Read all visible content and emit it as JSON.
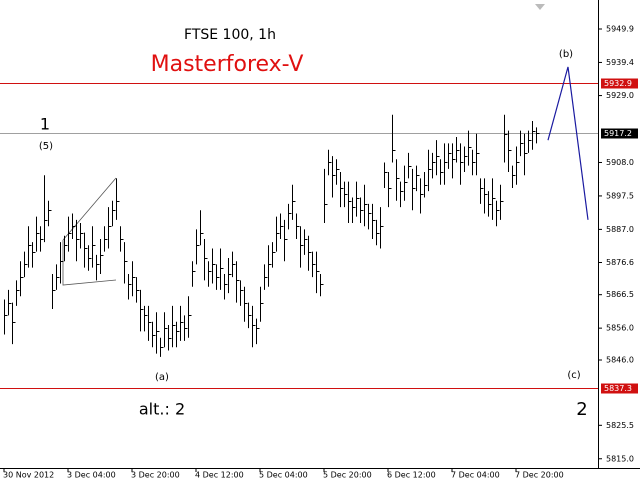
{
  "chart_data": {
    "type": "ohlc",
    "title": "FTSE 100, 1h",
    "subtitle": "Masterforex-V",
    "ylim": [
      5812.1,
      5959.0
    ],
    "xlim": [
      -1,
      148.5
    ],
    "yticks": [
      5949.9,
      5939.4,
      {
        "value": 5929,
        "label": "5929.0"
      },
      {
        "value": 5908,
        "label": "5908.0"
      },
      5897.5,
      {
        "value": 5887,
        "label": "5887.0"
      },
      5876.6,
      5866.5,
      {
        "value": 5856,
        "label": "5856.0"
      },
      {
        "value": 5846,
        "label": "5846.0"
      },
      5825.5,
      {
        "value": 5815,
        "label": "5815.0"
      }
    ],
    "xticks": [
      {
        "value": 0,
        "label": "30 Nov 2012"
      },
      {
        "value": 16,
        "label": "3 Dec 04:00"
      },
      {
        "value": 32,
        "label": "3 Dec 20:00"
      },
      {
        "value": 48,
        "label": "4 Dec 12:00"
      },
      {
        "value": 64,
        "label": "5 Dec 04:00"
      },
      {
        "value": 80,
        "label": "5 Dec 20:00"
      },
      {
        "value": 96,
        "label": "6 Dec 12:00"
      },
      {
        "value": 112,
        "label": "7 Dec 04:00"
      },
      {
        "value": 128,
        "label": "7 Dec 20:00"
      }
    ],
    "color": "#000000",
    "high": [
      5865,
      5868,
      5864,
      5871,
      5877,
      5880,
      5888,
      5883,
      5891,
      5888,
      5904,
      5896,
      5873,
      5876,
      5883,
      5885,
      5891,
      5892,
      5890,
      5889,
      5886,
      5882,
      5888,
      5879,
      5884,
      5888,
      5894,
      5896,
      5903,
      5888,
      5883,
      5873,
      5877,
      5872,
      5868,
      5863,
      5863,
      5858,
      5861,
      5853,
      5861,
      5857,
      5863,
      5858,
      5863,
      5860,
      5866,
      5877,
      5887,
      5893,
      5884,
      5877,
      5881,
      5876,
      5881,
      5873,
      5878,
      5880,
      5877,
      5871,
      5869,
      5864,
      5863,
      5859,
      5869,
      5876,
      5882,
      5883,
      5891,
      5892,
      5890,
      5895,
      5901,
      5892,
      5888,
      5887,
      5885,
      5880,
      5880,
      5873,
      5906,
      5912,
      5910,
      5909,
      5905,
      5902,
      5902,
      5897,
      5902,
      5897,
      5901,
      5895,
      5895,
      5890,
      5894,
      5908,
      5905,
      5923,
      5909,
      5902,
      5907,
      5911,
      5906,
      5907,
      5903,
      5905,
      5912,
      5911,
      5915,
      5909,
      5914,
      5914,
      5914,
      5916,
      5914,
      5913,
      5918,
      5912,
      5917,
      5903,
      5903,
      5899,
      5903,
      5896,
      5901,
      5923,
      5918,
      5907,
      5913,
      5918,
      5917,
      5918,
      5921,
      5919
    ],
    "low": [
      5854,
      5860,
      5851,
      5863,
      5866,
      5872,
      5875,
      5875,
      5880,
      5880,
      5883,
      5888,
      5862,
      5868,
      5870,
      5877,
      5880,
      5884,
      5877,
      5881,
      5875,
      5874,
      5875,
      5871,
      5873,
      5880,
      5881,
      5888,
      5890,
      5880,
      5870,
      5865,
      5866,
      5864,
      5855,
      5855,
      5852,
      5850,
      5848,
      5847,
      5850,
      5849,
      5850,
      5850,
      5852,
      5852,
      5853,
      5869,
      5876,
      5882,
      5871,
      5869,
      5870,
      5868,
      5868,
      5865,
      5867,
      5872,
      5864,
      5863,
      5858,
      5856,
      5850,
      5851,
      5858,
      5868,
      5869,
      5875,
      5880,
      5884,
      5877,
      5887,
      5890,
      5884,
      5875,
      5879,
      5874,
      5872,
      5867,
      5866,
      5889,
      5904,
      5897,
      5901,
      5894,
      5894,
      5889,
      5889,
      5891,
      5889,
      5888,
      5887,
      5884,
      5882,
      5881,
      5900,
      5894,
      5908,
      5896,
      5894,
      5896,
      5903,
      5893,
      5899,
      5892,
      5897,
      5899,
      5903,
      5904,
      5901,
      5901,
      5906,
      5903,
      5908,
      5901,
      5905,
      5907,
      5904,
      5904,
      5895,
      5892,
      5891,
      5890,
      5888,
      5890,
      5908,
      5905,
      5900,
      5901,
      5910,
      5904,
      5911,
      5912,
      5914
    ],
    "close": [
      5860,
      5864,
      5858,
      5868,
      5872,
      5876,
      5882,
      5880,
      5886,
      5884,
      5890,
      5893,
      5868,
      5872,
      5877,
      5882,
      5886,
      5888,
      5884,
      5886,
      5881,
      5878,
      5882,
      5876,
      5879,
      5884,
      5888,
      5893,
      5896,
      5884,
      5877,
      5870,
      5872,
      5868,
      5862,
      5860,
      5858,
      5854,
      5855,
      5850,
      5856,
      5853,
      5857,
      5855,
      5858,
      5856,
      5860,
      5874,
      5882,
      5886,
      5878,
      5874,
      5876,
      5872,
      5875,
      5870,
      5873,
      5876,
      5871,
      5868,
      5864,
      5860,
      5857,
      5856,
      5864,
      5872,
      5876,
      5880,
      5886,
      5888,
      5884,
      5892,
      5896,
      5888,
      5882,
      5884,
      5880,
      5876,
      5874,
      5870,
      5895,
      5908,
      5904,
      5906,
      5900,
      5898,
      5896,
      5894,
      5897,
      5893,
      5895,
      5892,
      5890,
      5886,
      5888,
      5905,
      5900,
      5912,
      5903,
      5899,
      5902,
      5907,
      5900,
      5904,
      5898,
      5901,
      5906,
      5908,
      5910,
      5905,
      5908,
      5911,
      5909,
      5912,
      5908,
      5910,
      5913,
      5908,
      5911,
      5900,
      5898,
      5895,
      5897,
      5893,
      5896,
      5917,
      5912,
      5904,
      5908,
      5914,
      5911,
      5915,
      5918,
      5917.2
    ],
    "forecast": {
      "x": [
        136,
        141,
        146
      ],
      "values": [
        5915,
        5938,
        5890
      ],
      "color": "#1a1aa0"
    },
    "levels": [
      {
        "value": 5932.9,
        "color": "#d01010",
        "label_bg": "#d01010"
      },
      {
        "value": 5917.2,
        "color": "#a0a0a0",
        "label_bg": "#000000"
      },
      {
        "value": 5837.3,
        "color": "#d01010",
        "label_bg": "#d01010"
      }
    ],
    "annotations": [
      "1",
      "(5)",
      "(a)",
      "alt.: 2",
      "(b)",
      "(c)",
      "2"
    ]
  }
}
